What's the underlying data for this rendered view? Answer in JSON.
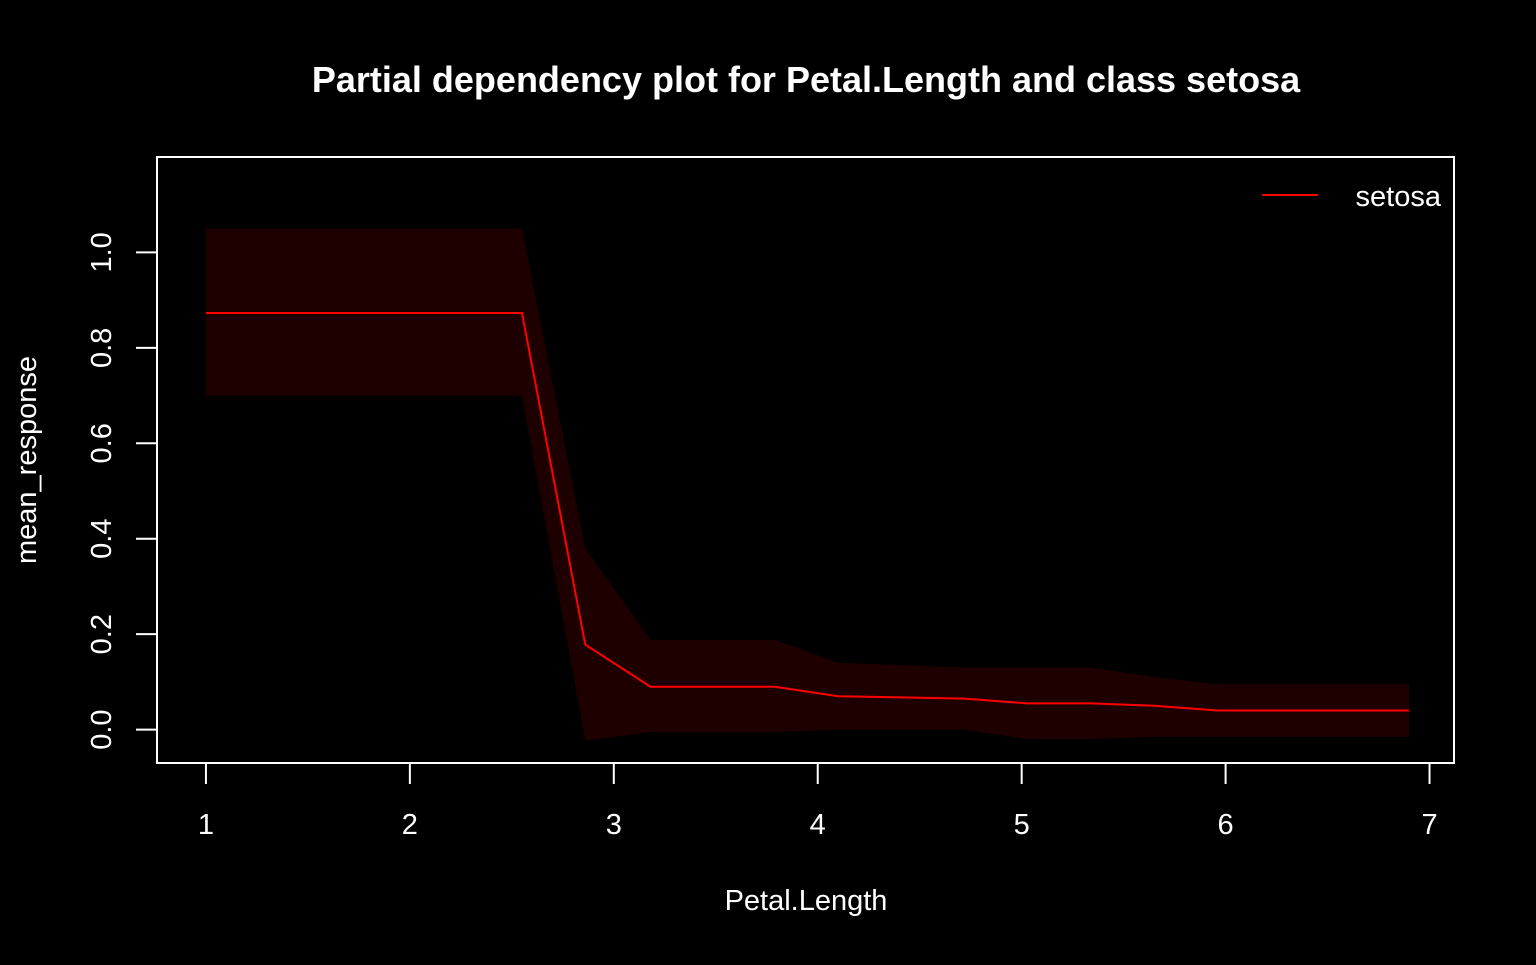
{
  "chart_data": {
    "type": "line",
    "title": "Partial dependency plot for Petal.Length and class setosa",
    "xlabel": "Petal.Length",
    "ylabel": "mean_response",
    "xlim": [
      0.76,
      7.12
    ],
    "ylim": [
      -0.07,
      1.2
    ],
    "x_ticks": [
      1,
      2,
      3,
      4,
      5,
      6,
      7
    ],
    "y_ticks": [
      0.0,
      0.2,
      0.4,
      0.6,
      0.8,
      1.0
    ],
    "x_tick_labels": [
      "1",
      "2",
      "3",
      "4",
      "5",
      "6",
      "7"
    ],
    "y_tick_labels": [
      "0.0",
      "0.2",
      "0.4",
      "0.6",
      "0.8",
      "1.0"
    ],
    "grid": false,
    "legend": {
      "position": "top-right",
      "entries": [
        "setosa"
      ]
    },
    "colors": {
      "line": "#ff0000",
      "band": "#1f0000",
      "background": "#000000",
      "foreground": "#ffffff"
    },
    "series": [
      {
        "name": "setosa",
        "x": [
          1.0,
          2.55,
          2.86,
          3.18,
          3.79,
          4.1,
          4.72,
          5.03,
          5.34,
          5.65,
          5.96,
          6.9
        ],
        "y": [
          0.873,
          0.873,
          0.178,
          0.09,
          0.09,
          0.07,
          0.065,
          0.055,
          0.055,
          0.05,
          0.04,
          0.04
        ],
        "lower": [
          0.7,
          0.7,
          -0.023,
          -0.005,
          -0.005,
          0.0,
          0.0,
          -0.02,
          -0.02,
          -0.015,
          -0.015,
          -0.015
        ],
        "upper": [
          1.05,
          1.05,
          0.38,
          0.188,
          0.188,
          0.14,
          0.13,
          0.13,
          0.13,
          0.11,
          0.095,
          0.095
        ]
      }
    ]
  }
}
